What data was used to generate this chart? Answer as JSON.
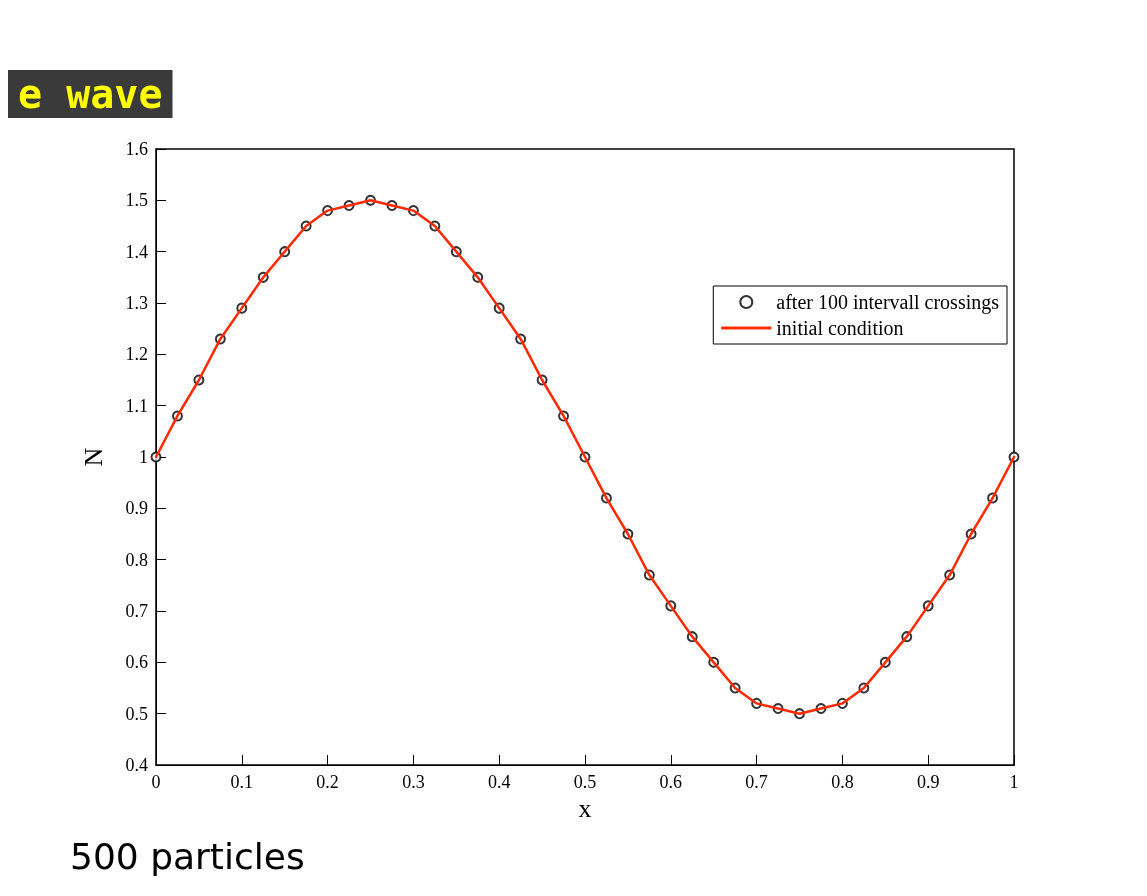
{
  "chart_data": {
    "type": "line",
    "xlabel": "x",
    "ylabel": "N",
    "annotations": [
      "e wave",
      "500 particles"
    ],
    "x": [
      0,
      0.025,
      0.05,
      0.075,
      0.1,
      0.125,
      0.15,
      0.175,
      0.2,
      0.225,
      0.25,
      0.275,
      0.3,
      0.325,
      0.35,
      0.375,
      0.4,
      0.425,
      0.45,
      0.475,
      0.5,
      0.525,
      0.55,
      0.575,
      0.6,
      0.625,
      0.65,
      0.675,
      0.7,
      0.725,
      0.75,
      0.775,
      0.8,
      0.825,
      0.85,
      0.875,
      0.9,
      0.925,
      0.95,
      0.975,
      1
    ],
    "series": [
      {
        "name": "after 100 intervall crossings",
        "type": "scatter",
        "marker": "circle",
        "color": "#000000",
        "values": [
          1.0,
          1.08,
          1.15,
          1.23,
          1.29,
          1.35,
          1.4,
          1.45,
          1.48,
          1.49,
          1.5,
          1.49,
          1.48,
          1.45,
          1.4,
          1.35,
          1.29,
          1.23,
          1.15,
          1.08,
          1.0,
          0.92,
          0.85,
          0.77,
          0.71,
          0.65,
          0.6,
          0.55,
          0.52,
          0.51,
          0.5,
          0.51,
          0.52,
          0.55,
          0.6,
          0.65,
          0.71,
          0.77,
          0.85,
          0.92,
          1.0
        ]
      },
      {
        "name": "initial condition",
        "color": "#ff2a00",
        "line_style": "solid",
        "values": [
          1.0,
          1.08,
          1.15,
          1.23,
          1.29,
          1.35,
          1.4,
          1.45,
          1.48,
          1.49,
          1.5,
          1.49,
          1.48,
          1.45,
          1.4,
          1.35,
          1.29,
          1.23,
          1.15,
          1.08,
          1.0,
          0.92,
          0.85,
          0.77,
          0.71,
          0.65,
          0.6,
          0.55,
          0.52,
          0.51,
          0.5,
          0.51,
          0.52,
          0.55,
          0.6,
          0.65,
          0.71,
          0.77,
          0.85,
          0.92,
          1.0
        ]
      }
    ],
    "xlim": [
      0,
      1
    ],
    "xticks": [
      0,
      0.1,
      0.2,
      0.3,
      0.4,
      0.5,
      0.6,
      0.7,
      0.8,
      0.9,
      1
    ],
    "ylim": [
      0.4,
      1.6
    ],
    "yticks": [
      0.4,
      0.5,
      0.6,
      0.7,
      0.8,
      0.9,
      1,
      1.1,
      1.2,
      1.3,
      1.4,
      1.5,
      1.6
    ],
    "grid": false,
    "legend": "top right"
  }
}
